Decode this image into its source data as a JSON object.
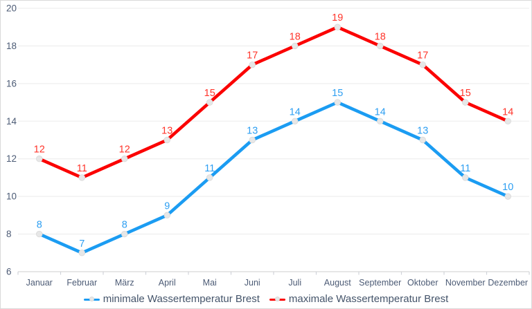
{
  "chart_data": {
    "type": "line",
    "categories": [
      "Januar",
      "Februar",
      "März",
      "April",
      "Mai",
      "Juni",
      "Juli",
      "August",
      "September",
      "Oktober",
      "November",
      "Dezember"
    ],
    "series": [
      {
        "name": "minimale Wassertemperatur Brest",
        "values": [
          8,
          7,
          8,
          9,
          11,
          13,
          14,
          15,
          14,
          13,
          11,
          10
        ],
        "color": "#1B9CF2",
        "label_color": "#2E9FF2"
      },
      {
        "name": "maximale Wassertemperatur Brest",
        "values": [
          12,
          11,
          12,
          13,
          15,
          17,
          18,
          19,
          18,
          17,
          15,
          14
        ],
        "color": "#FB0000",
        "label_color": "#FF352B"
      }
    ],
    "ylim": [
      6,
      20
    ],
    "ytick_step": 2,
    "grid": true,
    "legend_position": "bottom",
    "data_labels": "above",
    "marker_color": "#E7E7E7",
    "marker_stroke": "#D8D8D8",
    "styles": {
      "grid_color": "#EFEFEF",
      "axis_color": "#D6D6D6",
      "tick_color": "#D0D3D9",
      "axis_label_color": "#4C5B75",
      "legend_text_color": "#44546A",
      "background": "#FFFFFF",
      "border_color": "#D9D9D9"
    }
  }
}
